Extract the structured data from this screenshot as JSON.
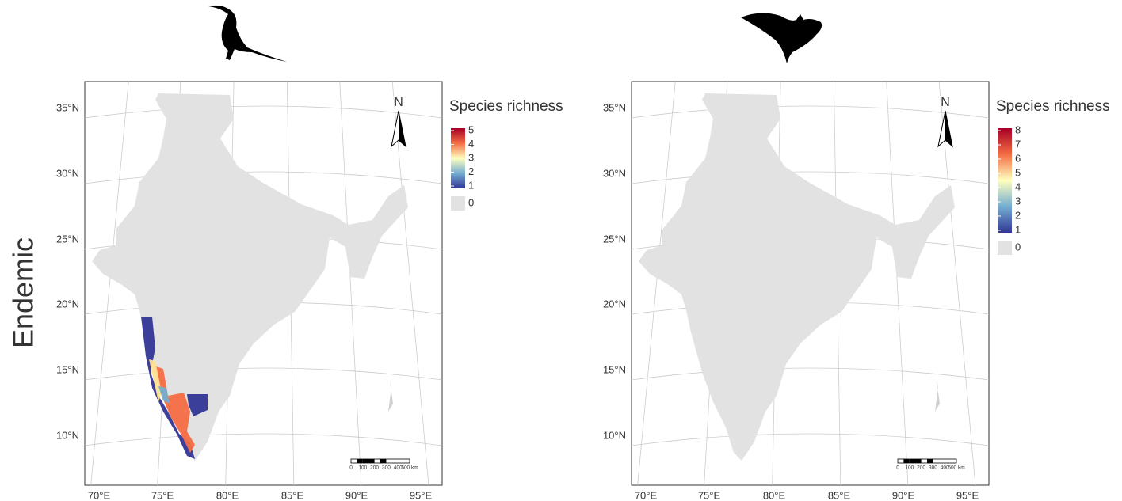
{
  "row_label": "Endemic",
  "panels": [
    {
      "legend": {
        "title": "Species richness",
        "ticks": [
          1,
          2,
          3,
          4,
          5
        ],
        "zero": "0"
      },
      "lat_labels": [
        "35°N",
        "30°N",
        "25°N",
        "20°N",
        "15°N",
        "10°N"
      ],
      "lon_labels": [
        "70°E",
        "75°E",
        "80°E",
        "85°E",
        "90°E",
        "95°E"
      ],
      "north": "N",
      "scale_bar": [
        "0",
        "100",
        "200",
        "300",
        "400",
        "500 km"
      ]
    },
    {
      "legend": {
        "title": "Species richness",
        "ticks": [
          1,
          2,
          3,
          4,
          5,
          6,
          7,
          8
        ],
        "zero": "0"
      },
      "lat_labels": [
        "35°N",
        "30°N",
        "25°N",
        "20°N",
        "15°N",
        "10°N"
      ],
      "lon_labels": [
        "70°E",
        "75°E",
        "80°E",
        "85°E",
        "90°E",
        "95°E"
      ],
      "north": "N",
      "scale_bar": [
        "0",
        "100",
        "200",
        "300",
        "400",
        "500 km"
      ]
    }
  ]
}
